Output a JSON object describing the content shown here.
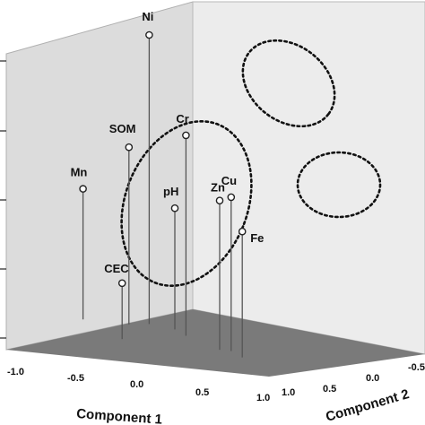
{
  "chart_data": {
    "type": "scatter",
    "projection": "3d",
    "xlabel": "Component 1",
    "ylabel": "Component 2",
    "zlabel": "",
    "x_ticks": [
      "-1.0",
      "-0.5",
      "0.0",
      "0.5",
      "1.0"
    ],
    "y_ticks": [
      "1.0",
      "0.5",
      "0.0",
      "-0.5"
    ],
    "xlim": [
      -1.0,
      1.0
    ],
    "ylim": [
      -1.0,
      1.0
    ],
    "points": [
      {
        "label": "Ni",
        "x": 0.3,
        "y": 0.95,
        "z": 0.62
      },
      {
        "label": "Cr",
        "x": 0.55,
        "y": 0.8,
        "z": 0.43
      },
      {
        "label": "SOM",
        "x": 0.1,
        "y": 0.9,
        "z": 0.38
      },
      {
        "label": "Mn",
        "x": -0.3,
        "y": 0.9,
        "z": 0.28
      },
      {
        "label": "pH",
        "x": 0.5,
        "y": 0.9,
        "z": 0.26
      },
      {
        "label": "CEC",
        "x": -0.1,
        "y": 0.6,
        "z": 0.12
      },
      {
        "label": "Zn",
        "x": 0.75,
        "y": 0.6,
        "z": 0.32
      },
      {
        "label": "Cu",
        "x": 0.85,
        "y": 0.6,
        "z": 0.33
      },
      {
        "label": "Fe",
        "x": 0.9,
        "y": 0.5,
        "z": 0.27
      }
    ],
    "groups": [
      [
        "Ni",
        "Cr"
      ],
      [
        "SOM",
        "Mn",
        "pH",
        "CEC"
      ],
      [
        "Zn",
        "Cu",
        "Fe"
      ]
    ],
    "grid": false,
    "background": "#e9e9e9",
    "floor_color": "#7a7a7a",
    "colors": {
      "stem": "#555555",
      "marker_fill": "#ffffff",
      "marker_edge": "#222222",
      "ellipse": "#111111"
    }
  }
}
